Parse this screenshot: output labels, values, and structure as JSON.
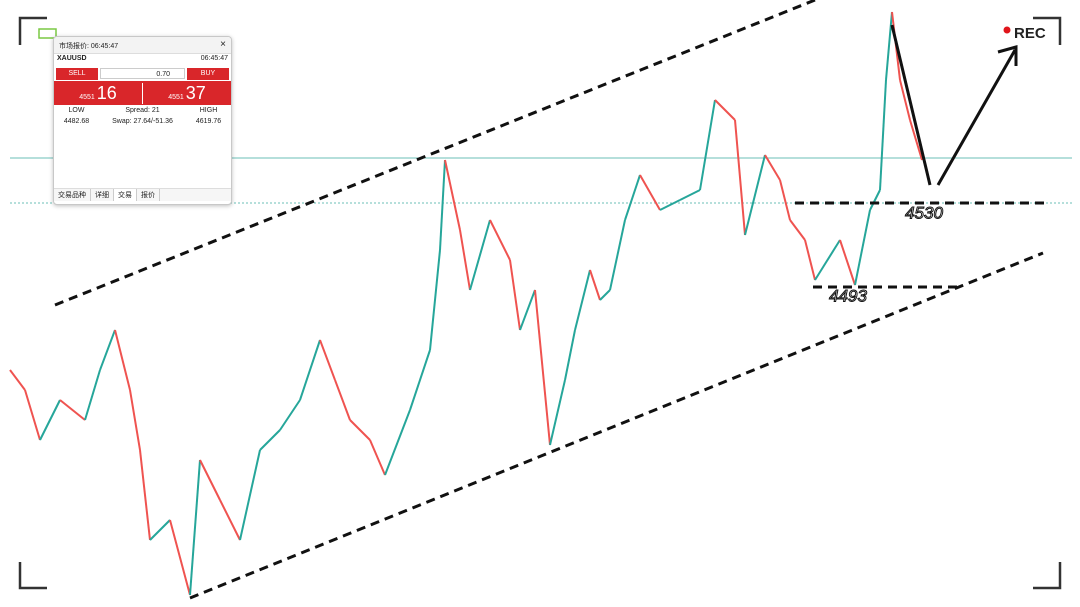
{
  "quote_window": {
    "title": "市场报价: 06:45:47",
    "symbol": "XAUUSD",
    "time": "06:45:47",
    "sell_label": "SELL",
    "buy_label": "BUY",
    "volume": "0.70",
    "bid": {
      "prefix": "4551",
      "big": "16"
    },
    "ask": {
      "prefix": "4551",
      "big": "37"
    },
    "low_label": "LOW",
    "low": "4482.68",
    "spread": "Spread: 21",
    "swap": "Swap: 27.64/-51.36",
    "high_label": "HIGH",
    "high": "4619.76",
    "tabs": [
      "交易品种",
      "详细",
      "交易",
      "报价"
    ]
  },
  "annotations": {
    "level_upper": "4530",
    "level_lower": "4493",
    "rec": "REC"
  }
}
